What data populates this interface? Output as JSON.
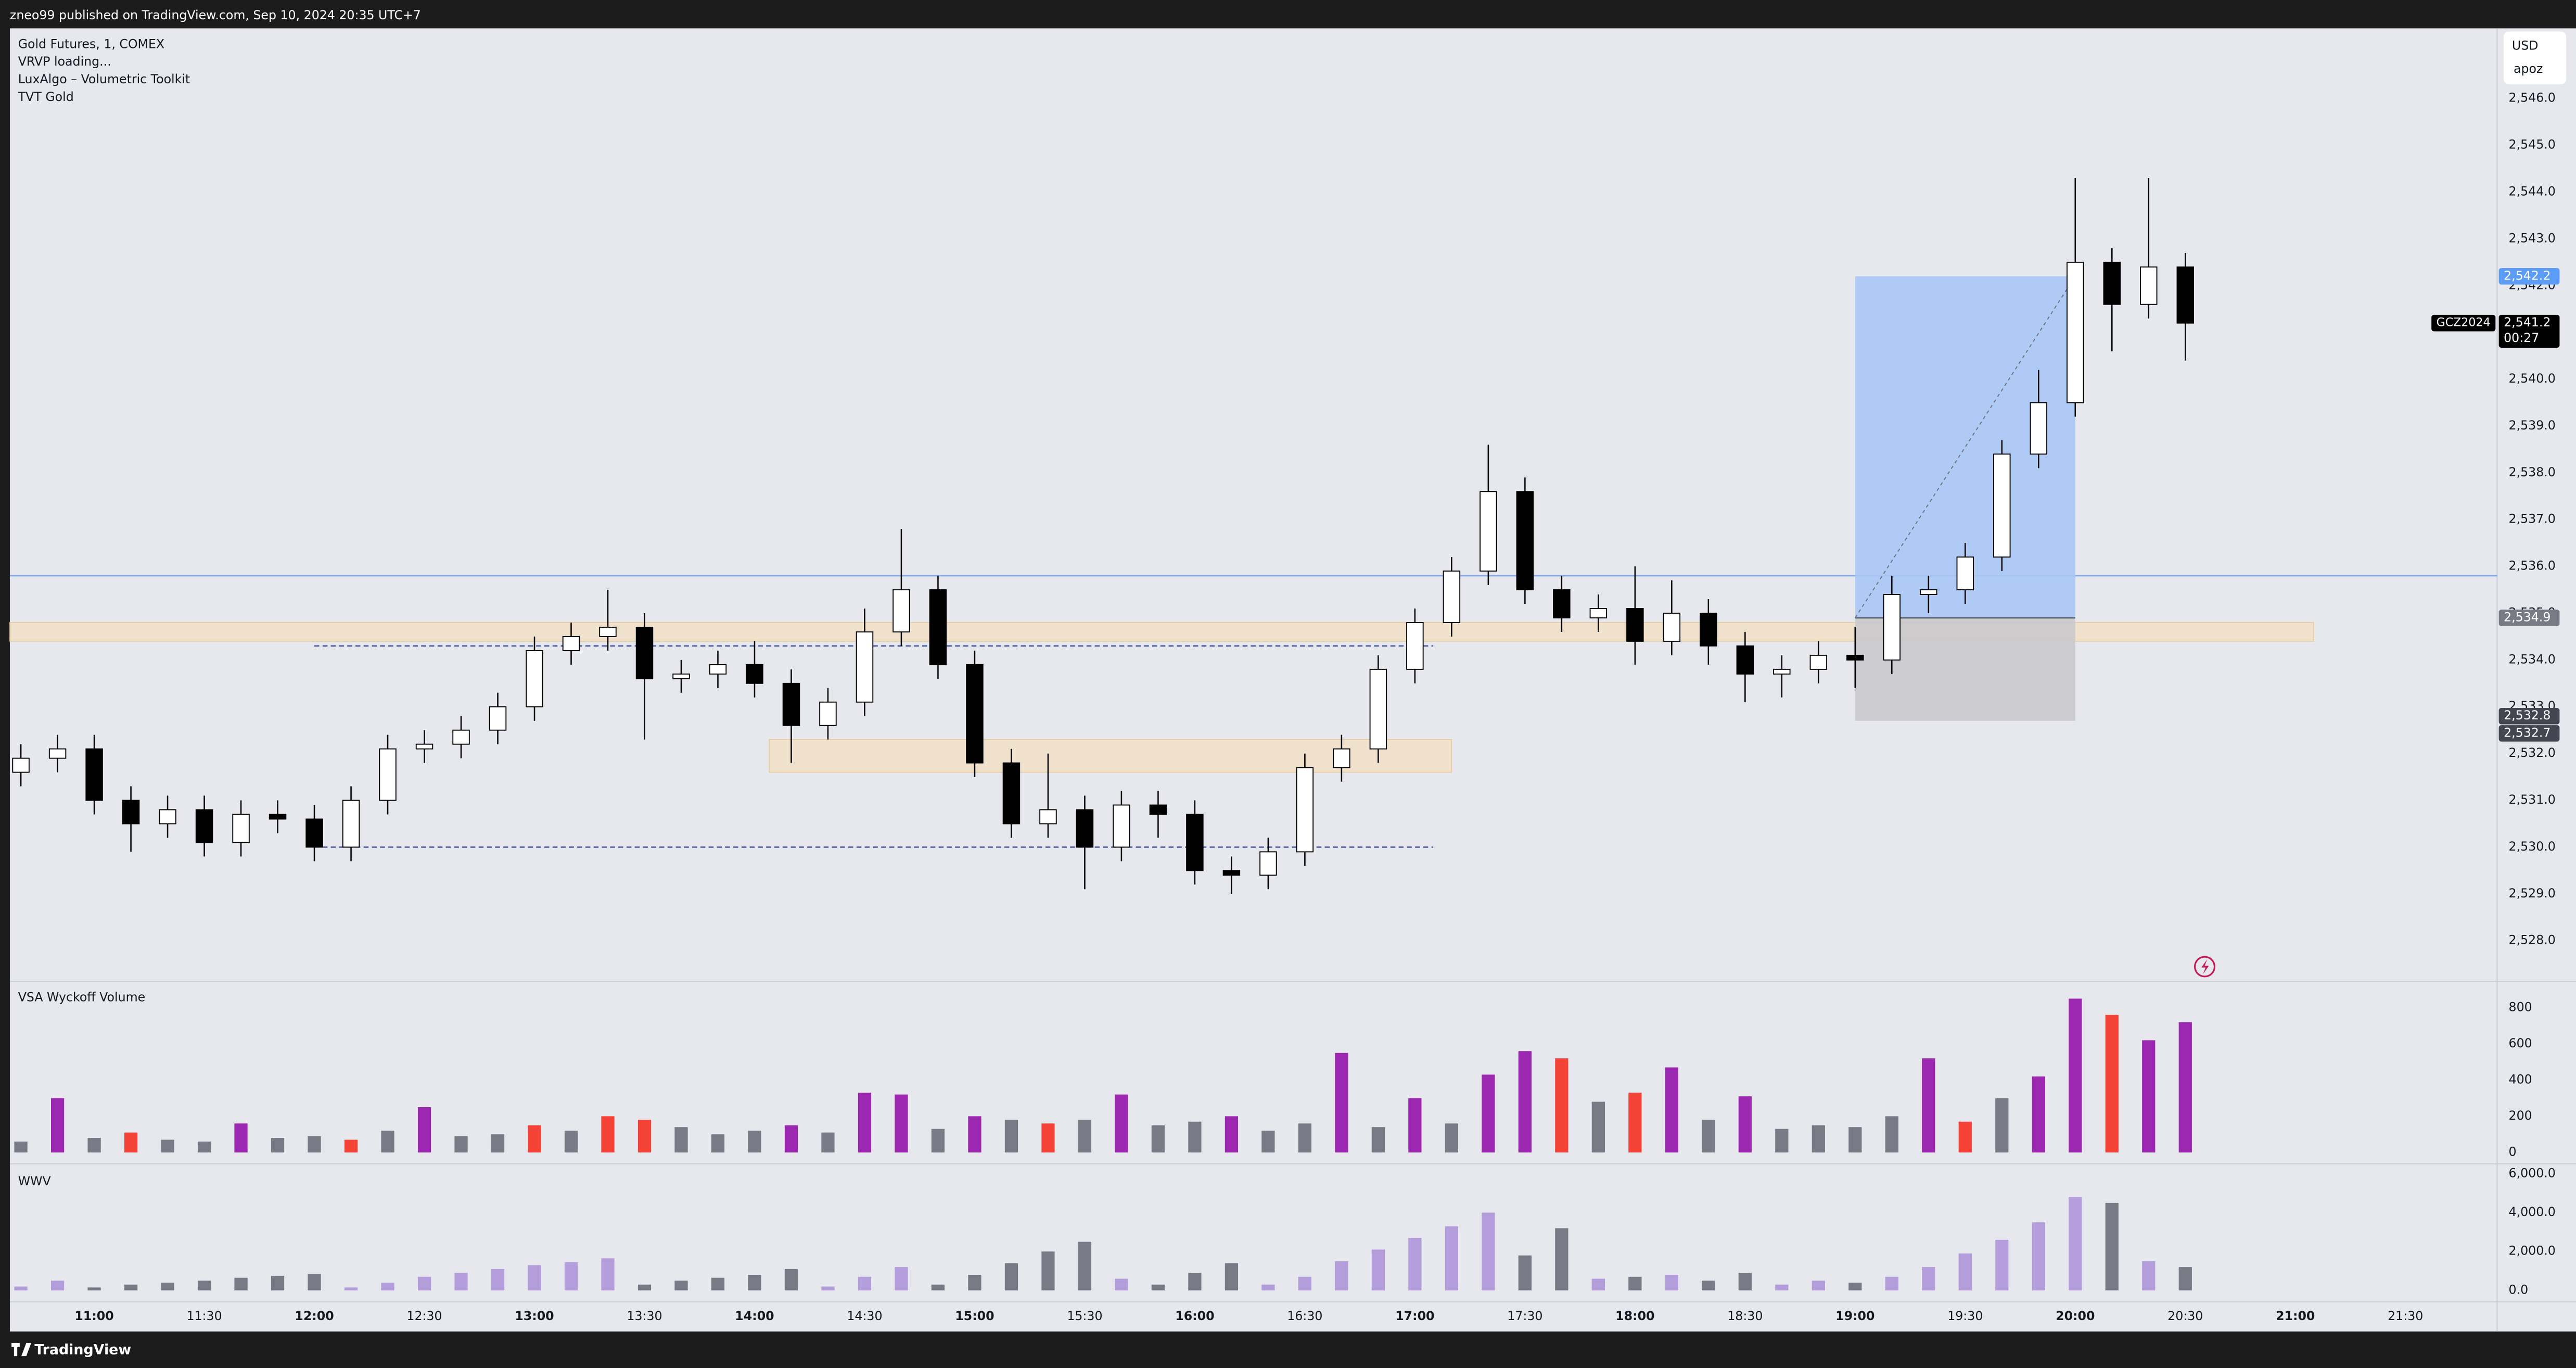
{
  "header": "zneo99 published on TradingView.com, Sep 10, 2024 20:35 UTC+7",
  "footer": "TradingView",
  "currency": "USD",
  "scale_mode": "apoz",
  "chart_data": [
    {
      "type": "candlestick",
      "legend": [
        "Gold Futures, 1, COMEX",
        "VRVP loading...",
        "LuxAlgo – Volumetric Toolkit",
        "TVT Gold"
      ],
      "x": [
        "10:40",
        "10:50",
        "11:00",
        "11:10",
        "11:20",
        "11:30",
        "11:40",
        "11:50",
        "12:00",
        "12:10",
        "12:20",
        "12:30",
        "12:40",
        "12:50",
        "13:00",
        "13:10",
        "13:20",
        "13:30",
        "13:40",
        "13:50",
        "14:00",
        "14:10",
        "14:20",
        "14:30",
        "14:40",
        "14:50",
        "15:00",
        "15:10",
        "15:20",
        "15:30",
        "15:40",
        "15:50",
        "16:00",
        "16:10",
        "16:20",
        "16:30",
        "16:40",
        "16:50",
        "17:00",
        "17:10",
        "17:20",
        "17:30",
        "17:40",
        "17:50",
        "18:00",
        "18:10",
        "18:20",
        "18:30",
        "18:40",
        "18:50",
        "19:00",
        "19:10",
        "19:20",
        "19:30",
        "19:40",
        "19:50",
        "20:00",
        "20:10",
        "20:20",
        "20:30"
      ],
      "open": [
        2531.6,
        2531.9,
        2532.1,
        2531.0,
        2530.5,
        2530.8,
        2530.1,
        2530.7,
        2530.6,
        2530.0,
        2531.0,
        2532.1,
        2532.2,
        2532.5,
        2533.0,
        2534.2,
        2534.5,
        2534.7,
        2533.6,
        2533.7,
        2533.9,
        2533.5,
        2532.6,
        2533.1,
        2534.6,
        2535.5,
        2533.9,
        2531.8,
        2530.5,
        2530.8,
        2530.0,
        2530.9,
        2530.7,
        2529.5,
        2529.4,
        2529.9,
        2531.7,
        2532.1,
        2533.8,
        2534.8,
        2535.9,
        2537.6,
        2535.5,
        2534.9,
        2535.1,
        2534.4,
        2535.0,
        2534.3,
        2533.7,
        2533.8,
        2534.1,
        2534.0,
        2535.4,
        2535.5,
        2536.2,
        2538.4,
        2539.5,
        2542.5,
        2541.6,
        2542.4
      ],
      "high": [
        2532.2,
        2532.4,
        2532.4,
        2531.3,
        2531.1,
        2531.1,
        2531.0,
        2531.0,
        2530.9,
        2531.3,
        2532.4,
        2532.5,
        2532.8,
        2533.3,
        2534.5,
        2534.8,
        2535.5,
        2535.0,
        2534.0,
        2534.2,
        2534.4,
        2533.8,
        2533.4,
        2535.1,
        2536.8,
        2535.8,
        2534.2,
        2532.1,
        2532.0,
        2531.1,
        2531.2,
        2531.2,
        2531.0,
        2529.8,
        2530.2,
        2532.0,
        2532.4,
        2534.1,
        2535.1,
        2536.2,
        2538.6,
        2537.9,
        2535.8,
        2535.4,
        2536.0,
        2535.7,
        2535.3,
        2534.6,
        2534.1,
        2534.4,
        2534.7,
        2535.8,
        2535.8,
        2536.5,
        2538.7,
        2540.2,
        2544.3,
        2542.8,
        2544.3,
        2542.7
      ],
      "low": [
        2531.3,
        2531.6,
        2530.7,
        2529.9,
        2530.2,
        2529.8,
        2529.8,
        2530.3,
        2529.7,
        2529.7,
        2530.7,
        2531.8,
        2531.9,
        2532.2,
        2532.7,
        2533.9,
        2534.2,
        2532.3,
        2533.3,
        2533.4,
        2533.2,
        2531.8,
        2532.3,
        2532.8,
        2534.3,
        2533.6,
        2531.5,
        2530.2,
        2530.2,
        2529.1,
        2529.7,
        2530.2,
        2529.2,
        2529.0,
        2529.1,
        2529.6,
        2531.4,
        2531.8,
        2533.5,
        2534.5,
        2535.6,
        2535.2,
        2534.6,
        2534.6,
        2533.9,
        2534.1,
        2533.9,
        2533.1,
        2533.2,
        2533.5,
        2533.4,
        2533.7,
        2535.0,
        2535.2,
        2535.9,
        2538.1,
        2539.2,
        2540.6,
        2541.3,
        2540.4
      ],
      "close": [
        2531.9,
        2532.1,
        2531.0,
        2530.5,
        2530.8,
        2530.1,
        2530.7,
        2530.6,
        2530.0,
        2531.0,
        2532.1,
        2532.2,
        2532.5,
        2533.0,
        2534.2,
        2534.5,
        2534.7,
        2533.6,
        2533.7,
        2533.9,
        2533.5,
        2532.6,
        2533.1,
        2534.6,
        2535.5,
        2533.9,
        2531.8,
        2530.5,
        2530.8,
        2530.0,
        2530.9,
        2530.7,
        2529.5,
        2529.4,
        2529.9,
        2531.7,
        2532.1,
        2533.8,
        2534.8,
        2535.9,
        2537.6,
        2535.5,
        2534.9,
        2535.1,
        2534.4,
        2535.0,
        2534.3,
        2533.7,
        2533.8,
        2534.1,
        2534.0,
        2535.4,
        2535.5,
        2536.2,
        2538.4,
        2539.5,
        2542.5,
        2541.6,
        2542.4,
        2541.2
      ],
      "up_color": "#ffffff",
      "down_color": "#000000",
      "wick_color": "#000000",
      "xlim": [
        "10:37",
        "21:55"
      ],
      "ylim": [
        2527.2,
        2547.5
      ],
      "yticks": [
        {
          "value": 2546,
          "label": "2,546.0"
        },
        {
          "value": 2545,
          "label": "2,545.0"
        },
        {
          "value": 2544,
          "label": "2,544.0"
        },
        {
          "value": 2543,
          "label": "2,543.0"
        },
        {
          "value": 2542,
          "label": "2,542.0"
        },
        {
          "value": 2541,
          "label": "2,541.0"
        },
        {
          "value": 2540,
          "label": "2,540.0"
        },
        {
          "value": 2539,
          "label": "2,539.0"
        },
        {
          "value": 2538,
          "label": "2,538.0"
        },
        {
          "value": 2537,
          "label": "2,537.0"
        },
        {
          "value": 2536,
          "label": "2,536.0"
        },
        {
          "value": 2535,
          "label": "2,535.0"
        },
        {
          "value": 2534,
          "label": "2,534.0"
        },
        {
          "value": 2533,
          "label": "2,533.0"
        },
        {
          "value": 2532,
          "label": "2,532.0"
        },
        {
          "value": 2531,
          "label": "2,531.0"
        },
        {
          "value": 2530,
          "label": "2,530.0"
        },
        {
          "value": 2529,
          "label": "2,529.0"
        },
        {
          "value": 2528,
          "label": "2,528.0"
        }
      ],
      "xticks": [
        "11:00",
        "11:30",
        "12:00",
        "12:30",
        "13:00",
        "13:30",
        "14:00",
        "14:30",
        "15:00",
        "15:30",
        "16:00",
        "16:30",
        "17:00",
        "17:30",
        "18:00",
        "18:30",
        "19:00",
        "19:30",
        "20:00",
        "20:30",
        "21:00",
        "21:30"
      ],
      "hlines": [
        {
          "value": 2535.8,
          "color": "#7fa8f0"
        }
      ],
      "zones": [
        {
          "from": "10:37",
          "to": "21:05",
          "low": 2534.4,
          "high": 2534.8,
          "color": "#f0dfc4"
        },
        {
          "from": "14:04",
          "to": "17:10",
          "low": 2531.6,
          "high": 2532.3,
          "color": "#f0dfc4"
        }
      ],
      "levels": [
        {
          "from": "12:00",
          "to": "17:05",
          "value": 2534.3,
          "color": "#2a3f8f"
        },
        {
          "from": "12:00",
          "to": "17:05",
          "value": 2530.0,
          "color": "#2a3f8f"
        }
      ],
      "position": {
        "from": "19:00",
        "to": "20:00",
        "entry": 2534.9,
        "target": 2542.2,
        "stop": 2532.7,
        "profit_color": "#a9c6f5",
        "loss_color": "#c9c9cc"
      },
      "price_labels": [
        {
          "value": 2542.2,
          "label": "2,542.2",
          "color": "#5b9cf6"
        },
        {
          "value": 2534.9,
          "label": "2,534.9",
          "color": "#787b86"
        },
        {
          "value": 2532.8,
          "label": "2,532.8",
          "color": "#434651"
        },
        {
          "value": 2532.7,
          "label": "2,532.7",
          "color": "#434651"
        }
      ],
      "last_price": {
        "value": 2541.2,
        "label": "2,541.2",
        "countdown": "00:27",
        "symbol": "GCZ2024"
      }
    },
    {
      "type": "bar",
      "title": "VSA Wyckoff Volume",
      "x": [
        "10:40",
        "10:50",
        "11:00",
        "11:10",
        "11:20",
        "11:30",
        "11:40",
        "11:50",
        "12:00",
        "12:10",
        "12:20",
        "12:30",
        "12:40",
        "12:50",
        "13:00",
        "13:10",
        "13:20",
        "13:30",
        "13:40",
        "13:50",
        "14:00",
        "14:10",
        "14:20",
        "14:30",
        "14:40",
        "14:50",
        "15:00",
        "15:10",
        "15:20",
        "15:30",
        "15:40",
        "15:50",
        "16:00",
        "16:10",
        "16:20",
        "16:30",
        "16:40",
        "16:50",
        "17:00",
        "17:10",
        "17:20",
        "17:30",
        "17:40",
        "17:50",
        "18:00",
        "18:10",
        "18:20",
        "18:30",
        "18:40",
        "18:50",
        "19:00",
        "19:10",
        "19:20",
        "19:30",
        "19:40",
        "19:50",
        "20:00",
        "20:10",
        "20:20",
        "20:30"
      ],
      "values": [
        60,
        300,
        80,
        110,
        70,
        60,
        160,
        80,
        90,
        70,
        120,
        250,
        90,
        100,
        150,
        120,
        200,
        180,
        140,
        100,
        120,
        150,
        110,
        330,
        320,
        130,
        200,
        180,
        160,
        180,
        320,
        150,
        170,
        200,
        120,
        160,
        550,
        140,
        300,
        160,
        430,
        560,
        520,
        280,
        330,
        470,
        180,
        310,
        130,
        150,
        140,
        200,
        520,
        170,
        300,
        420,
        850,
        760,
        620,
        720
      ],
      "colors": [
        "#787b86",
        "#9c27b0",
        "#787b86",
        "#f44336",
        "#787b86",
        "#787b86",
        "#9c27b0",
        "#787b86",
        "#787b86",
        "#f44336",
        "#787b86",
        "#9c27b0",
        "#787b86",
        "#787b86",
        "#f44336",
        "#787b86",
        "#f44336",
        "#f44336",
        "#787b86",
        "#787b86",
        "#787b86",
        "#9c27b0",
        "#787b86",
        "#9c27b0",
        "#9c27b0",
        "#787b86",
        "#9c27b0",
        "#787b86",
        "#f44336",
        "#787b86",
        "#9c27b0",
        "#787b86",
        "#787b86",
        "#9c27b0",
        "#787b86",
        "#787b86",
        "#9c27b0",
        "#787b86",
        "#9c27b0",
        "#787b86",
        "#9c27b0",
        "#9c27b0",
        "#f44336",
        "#787b86",
        "#f44336",
        "#9c27b0",
        "#787b86",
        "#9c27b0",
        "#787b86",
        "#787b86",
        "#787b86",
        "#787b86",
        "#9c27b0",
        "#f44336",
        "#787b86",
        "#9c27b0",
        "#9c27b0",
        "#f44336",
        "#9c27b0",
        "#9c27b0"
      ],
      "xlim": [
        "10:37",
        "21:55"
      ],
      "ylim": [
        -45,
        936
      ],
      "yticks": [
        0,
        200,
        400,
        600,
        800
      ]
    },
    {
      "type": "bar",
      "title": "WWV",
      "x": [
        "10:40",
        "10:50",
        "11:00",
        "11:10",
        "11:20",
        "11:30",
        "11:40",
        "11:50",
        "12:00",
        "12:10",
        "12:20",
        "12:30",
        "12:40",
        "12:50",
        "13:00",
        "13:10",
        "13:20",
        "13:30",
        "13:40",
        "13:50",
        "14:00",
        "14:10",
        "14:20",
        "14:30",
        "14:40",
        "14:50",
        "15:00",
        "15:10",
        "15:20",
        "15:30",
        "15:40",
        "15:50",
        "16:00",
        "16:10",
        "16:20",
        "16:30",
        "16:40",
        "16:50",
        "17:00",
        "17:10",
        "17:20",
        "17:30",
        "17:40",
        "17:50",
        "18:00",
        "18:10",
        "18:20",
        "18:30",
        "18:40",
        "18:50",
        "19:00",
        "19:10",
        "19:20",
        "19:30",
        "19:40",
        "19:50",
        "20:00",
        "20:10",
        "20:20",
        "20:30"
      ],
      "values": [
        200,
        500,
        150,
        300,
        400,
        500,
        650,
        750,
        850,
        150,
        400,
        700,
        900,
        1100,
        1300,
        1450,
        1650,
        300,
        500,
        650,
        800,
        1100,
        200,
        700,
        1200,
        300,
        800,
        1400,
        2000,
        2500,
        600,
        300,
        900,
        1400,
        300,
        700,
        1500,
        2100,
        2700,
        3300,
        4000,
        1800,
        3200,
        600,
        700,
        800,
        500,
        900,
        300,
        500,
        400,
        700,
        1200,
        1900,
        2600,
        3500,
        4800,
        4500,
        1500,
        1200
      ],
      "colors": [
        "#b39ddb",
        "#b39ddb",
        "#787b86",
        "#787b86",
        "#787b86",
        "#787b86",
        "#787b86",
        "#787b86",
        "#787b86",
        "#b39ddb",
        "#b39ddb",
        "#b39ddb",
        "#b39ddb",
        "#b39ddb",
        "#b39ddb",
        "#b39ddb",
        "#b39ddb",
        "#787b86",
        "#787b86",
        "#787b86",
        "#787b86",
        "#787b86",
        "#b39ddb",
        "#b39ddb",
        "#b39ddb",
        "#787b86",
        "#787b86",
        "#787b86",
        "#787b86",
        "#787b86",
        "#b39ddb",
        "#787b86",
        "#787b86",
        "#787b86",
        "#b39ddb",
        "#b39ddb",
        "#b39ddb",
        "#b39ddb",
        "#b39ddb",
        "#b39ddb",
        "#b39ddb",
        "#787b86",
        "#787b86",
        "#b39ddb",
        "#787b86",
        "#b39ddb",
        "#787b86",
        "#787b86",
        "#b39ddb",
        "#b39ddb",
        "#787b86",
        "#b39ddb",
        "#b39ddb",
        "#b39ddb",
        "#b39ddb",
        "#b39ddb",
        "#b39ddb",
        "#787b86",
        "#b39ddb",
        "#787b86"
      ],
      "xlim": [
        "10:37",
        "21:55"
      ],
      "ylim": [
        -590,
        6340
      ],
      "yticks": [
        {
          "value": 0,
          "label": "0.0"
        },
        {
          "value": 2000,
          "label": "2,000.0"
        },
        {
          "value": 4000,
          "label": "4,000.0"
        },
        {
          "value": 6000,
          "label": "6,000.0"
        }
      ]
    }
  ]
}
